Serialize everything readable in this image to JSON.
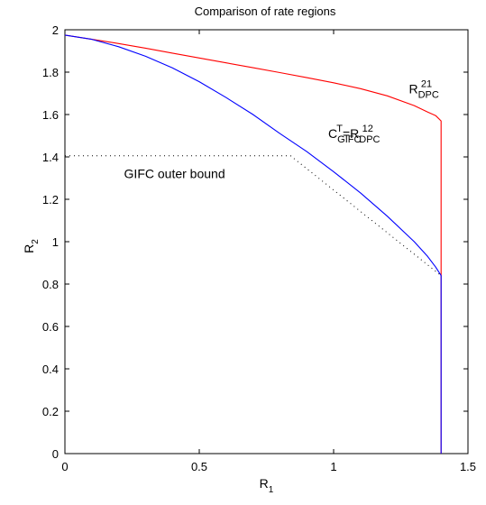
{
  "chart_data": {
    "type": "line",
    "title": "Comparison of rate regions",
    "xlabel": {
      "main": "R",
      "sub": "1"
    },
    "ylabel": {
      "main": "R",
      "sub": "2"
    },
    "xlim": [
      0,
      1.5
    ],
    "ylim": [
      0,
      2
    ],
    "xticks": [
      {
        "value": 0,
        "label": "0"
      },
      {
        "value": 0.5,
        "label": "0.5"
      },
      {
        "value": 1,
        "label": "1"
      },
      {
        "value": 1.5,
        "label": "1.5"
      }
    ],
    "yticks": [
      {
        "value": 0,
        "label": "0"
      },
      {
        "value": 0.2,
        "label": "0.2"
      },
      {
        "value": 0.4,
        "label": "0.4"
      },
      {
        "value": 0.6,
        "label": "0.6"
      },
      {
        "value": 0.8,
        "label": "0.8"
      },
      {
        "value": 1,
        "label": "1"
      },
      {
        "value": 1.2,
        "label": "1.2"
      },
      {
        "value": 1.4,
        "label": "1.4"
      },
      {
        "value": 1.6,
        "label": "1.6"
      },
      {
        "value": 1.8,
        "label": "1.8"
      },
      {
        "value": 2,
        "label": "2"
      }
    ],
    "grid": false,
    "series": [
      {
        "id": "dpc21",
        "color": "#ff0000",
        "style": "solid",
        "x": [
          0,
          0.1,
          0.2,
          0.3,
          0.4,
          0.5,
          0.6,
          0.7,
          0.8,
          0.9,
          1.0,
          1.1,
          1.2,
          1.3,
          1.35,
          1.38,
          1.4,
          1.4,
          1.4
        ],
        "y": [
          1.975,
          1.955,
          1.935,
          1.913,
          1.89,
          1.867,
          1.844,
          1.821,
          1.798,
          1.774,
          1.75,
          1.722,
          1.688,
          1.642,
          1.612,
          1.595,
          1.57,
          1.0,
          0
        ]
      },
      {
        "id": "gifc-capacity",
        "color": "#0000ff",
        "style": "solid",
        "x": [
          0,
          0.1,
          0.2,
          0.3,
          0.4,
          0.5,
          0.6,
          0.7,
          0.8,
          0.9,
          1.0,
          1.1,
          1.2,
          1.3,
          1.35,
          1.38,
          1.4,
          1.4,
          1.4
        ],
        "y": [
          1.975,
          1.955,
          1.92,
          1.875,
          1.82,
          1.755,
          1.68,
          1.6,
          1.51,
          1.425,
          1.33,
          1.23,
          1.12,
          1.0,
          0.93,
          0.88,
          0.84,
          0.5,
          0
        ]
      },
      {
        "id": "gifc-outer",
        "color": "#000000",
        "style": "dotted",
        "x": [
          0,
          0.84,
          1.4
        ],
        "y": [
          1.405,
          1.405,
          0.84
        ]
      }
    ],
    "annotations": [
      {
        "id": "label-dpc21",
        "x": 1.28,
        "y": 1.7,
        "parts": [
          {
            "text": "R"
          },
          {
            "text": "DPC",
            "shift": "sub"
          },
          {
            "text": "21",
            "shift": "sup"
          }
        ]
      },
      {
        "id": "label-capacity",
        "x": 0.98,
        "y": 1.49,
        "parts": [
          {
            "text": "C"
          },
          {
            "text": "GIFC",
            "shift": "sub"
          },
          {
            "text": "T",
            "shift": "sup"
          },
          {
            "text": "=R"
          },
          {
            "text": "DPC",
            "shift": "sub"
          },
          {
            "text": "12",
            "shift": "sup"
          }
        ]
      },
      {
        "id": "label-outer",
        "x": 0.22,
        "y": 1.3,
        "parts": [
          {
            "text": "GIFC outer bound"
          }
        ]
      }
    ]
  }
}
